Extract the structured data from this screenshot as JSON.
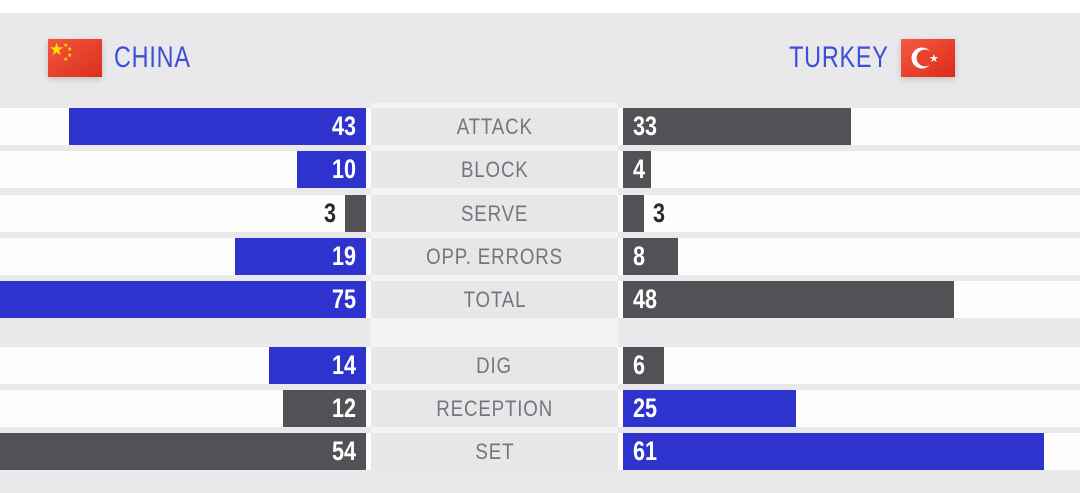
{
  "teams": {
    "left": {
      "name": "CHINA",
      "flag": "china-flag"
    },
    "right": {
      "name": "TURKEY",
      "flag": "turkey-flag"
    }
  },
  "chart_data": {
    "type": "bar",
    "orientation": "horizontal-mirrored",
    "categories": [
      "ATTACK",
      "BLOCK",
      "SERVE",
      "OPP. ERRORS",
      "TOTAL",
      "DIG",
      "RECEPTION",
      "SET"
    ],
    "series": [
      {
        "name": "CHINA",
        "side": "left",
        "values": [
          43,
          10,
          3,
          19,
          75,
          14,
          12,
          54
        ]
      },
      {
        "name": "TURKEY",
        "side": "right",
        "values": [
          33,
          4,
          3,
          8,
          48,
          6,
          25,
          61
        ]
      }
    ],
    "highlight_per_row": [
      "left",
      "left",
      "none",
      "left",
      "left",
      "left",
      "right",
      "right"
    ],
    "section_break_after": "TOTAL",
    "grid": false,
    "legend_position": "none"
  },
  "colors": {
    "page_bg": "#E9E9EC",
    "track_bg": "#FDFDFE",
    "center_band": "#E7E7EA",
    "center_gap": "#F3F3F6",
    "bar_highlight": "#2F33CE",
    "bar_neutral": "#535156",
    "team_name": "#3D4ED8",
    "stat_label": "#75757A",
    "value_inside": "#FFFFFF",
    "value_outside": "#29292C",
    "flag_red": "#E8402A",
    "flag_star_yellow": "#FFDE00"
  }
}
